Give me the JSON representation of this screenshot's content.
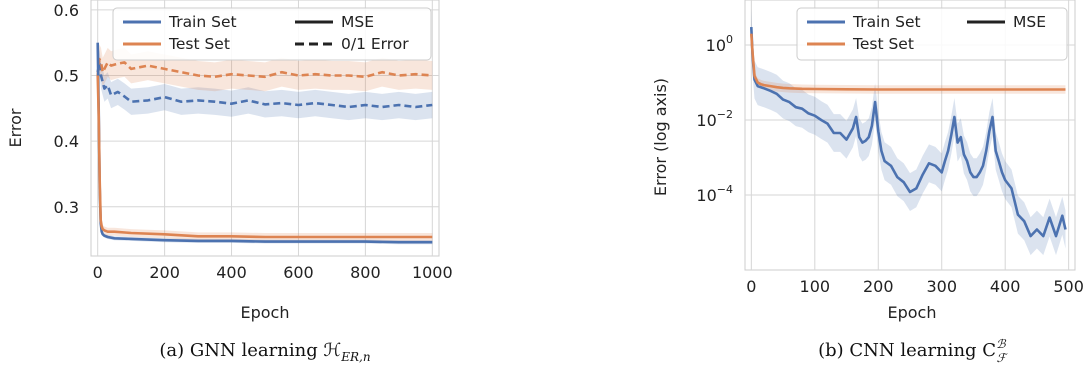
{
  "chart_data": [
    {
      "type": "line",
      "caption": "(a) GNN learning ℋ",
      "caption_sub": "ER,n",
      "xlabel": "Epoch",
      "ylabel": "Error",
      "xlim": [
        -20,
        1020
      ],
      "ylim": [
        0.225,
        0.615
      ],
      "x_ticks": [
        0,
        200,
        400,
        600,
        800,
        1000
      ],
      "y_ticks": [
        0.3,
        0.4,
        0.5,
        0.6
      ],
      "y_tick_labels": [
        "0.3",
        "0.4",
        "0.5",
        "0.6"
      ],
      "y_scale": "linear",
      "grid": true,
      "legend": {
        "placement": "top-right",
        "entries": [
          {
            "label": "Train Set",
            "kind": "color",
            "color": "#4c72b0"
          },
          {
            "label": "MSE",
            "kind": "style",
            "dash": "solid"
          },
          {
            "label": "Test Set",
            "kind": "color",
            "color": "#dd8452"
          },
          {
            "label": "0/1 Error",
            "kind": "style",
            "dash": "dashed"
          }
        ]
      },
      "series": [
        {
          "name": "Train Set",
          "metric": "0/1 Error",
          "color": "#4c72b0",
          "dash": "dashed",
          "x": [
            0,
            5,
            10,
            15,
            20,
            30,
            40,
            60,
            80,
            100,
            150,
            200,
            250,
            300,
            350,
            400,
            450,
            500,
            550,
            600,
            650,
            700,
            750,
            800,
            850,
            900,
            950,
            1000
          ],
          "y": [
            0.505,
            0.52,
            0.5,
            0.49,
            0.48,
            0.485,
            0.47,
            0.475,
            0.468,
            0.46,
            0.462,
            0.467,
            0.46,
            0.462,
            0.46,
            0.457,
            0.462,
            0.456,
            0.458,
            0.455,
            0.458,
            0.455,
            0.452,
            0.455,
            0.452,
            0.455,
            0.452,
            0.455
          ],
          "band": 0.02
        },
        {
          "name": "Test Set",
          "metric": "0/1 Error",
          "color": "#dd8452",
          "dash": "dashed",
          "x": [
            0,
            5,
            10,
            15,
            20,
            30,
            40,
            60,
            80,
            100,
            150,
            200,
            250,
            300,
            350,
            400,
            450,
            500,
            550,
            600,
            650,
            700,
            750,
            800,
            850,
            900,
            950,
            1000
          ],
          "y": [
            0.5,
            0.525,
            0.52,
            0.505,
            0.51,
            0.52,
            0.515,
            0.518,
            0.52,
            0.51,
            0.515,
            0.51,
            0.505,
            0.5,
            0.498,
            0.502,
            0.5,
            0.498,
            0.505,
            0.5,
            0.502,
            0.5,
            0.5,
            0.498,
            0.505,
            0.5,
            0.502,
            0.5
          ],
          "band": 0.022
        },
        {
          "name": "Train Set",
          "metric": "MSE",
          "color": "#4c72b0",
          "dash": "solid",
          "x": [
            0,
            3,
            6,
            9,
            12,
            15,
            20,
            30,
            50,
            100,
            200,
            300,
            400,
            500,
            600,
            700,
            800,
            900,
            1000
          ],
          "y": [
            0.55,
            0.45,
            0.33,
            0.275,
            0.262,
            0.258,
            0.256,
            0.254,
            0.252,
            0.251,
            0.249,
            0.248,
            0.248,
            0.247,
            0.247,
            0.247,
            0.247,
            0.246,
            0.246
          ],
          "band": 0.003
        },
        {
          "name": "Test Set",
          "metric": "MSE",
          "color": "#dd8452",
          "dash": "solid",
          "x": [
            0,
            3,
            6,
            9,
            12,
            15,
            20,
            30,
            50,
            100,
            200,
            300,
            400,
            500,
            600,
            700,
            800,
            900,
            1000
          ],
          "y": [
            0.5,
            0.44,
            0.34,
            0.28,
            0.27,
            0.266,
            0.264,
            0.262,
            0.262,
            0.26,
            0.258,
            0.255,
            0.255,
            0.254,
            0.254,
            0.254,
            0.254,
            0.254,
            0.254
          ],
          "band": 0.006
        }
      ]
    },
    {
      "type": "line",
      "caption": "(b) CNN learning C",
      "caption_sup": "ℬ",
      "caption_sub": "ℱ",
      "xlabel": "Epoch",
      "ylabel": "Error (log axis)",
      "xlim": [
        -10,
        510
      ],
      "ylim_log10": [
        -6.0,
        1.2
      ],
      "x_ticks": [
        0,
        100,
        200,
        300,
        400,
        500
      ],
      "y_ticks_log10": [
        0,
        -2,
        -4
      ],
      "y_tick_labels": [
        "10",
        "10",
        "10"
      ],
      "y_tick_exponents": [
        "0",
        "−2",
        "−4"
      ],
      "y_scale": "log",
      "grid": true,
      "legend": {
        "placement": "top-right",
        "entries": [
          {
            "label": "Train Set",
            "kind": "color",
            "color": "#4c72b0"
          },
          {
            "label": "MSE",
            "kind": "style",
            "dash": "solid"
          },
          {
            "label": "Test Set",
            "kind": "color",
            "color": "#dd8452"
          }
        ]
      },
      "series": [
        {
          "name": "Train Set",
          "metric": "MSE",
          "color": "#4c72b0",
          "dash": "solid",
          "x": [
            0,
            2,
            5,
            10,
            20,
            30,
            40,
            50,
            60,
            70,
            80,
            90,
            100,
            110,
            120,
            130,
            140,
            150,
            160,
            165,
            170,
            175,
            180,
            185,
            190,
            195,
            200,
            205,
            210,
            220,
            230,
            240,
            250,
            260,
            270,
            280,
            290,
            300,
            305,
            310,
            315,
            320,
            325,
            330,
            335,
            340,
            345,
            350,
            355,
            360,
            365,
            370,
            375,
            380,
            385,
            390,
            395,
            400,
            410,
            420,
            430,
            440,
            450,
            460,
            470,
            480,
            490,
            495
          ],
          "y": [
            3.0,
            0.5,
            0.12,
            0.08,
            0.07,
            0.06,
            0.05,
            0.035,
            0.03,
            0.022,
            0.02,
            0.015,
            0.013,
            0.01,
            0.008,
            0.0045,
            0.0045,
            0.003,
            0.006,
            0.012,
            0.0035,
            0.0025,
            0.0028,
            0.0035,
            0.007,
            0.03,
            0.005,
            0.0015,
            0.0008,
            0.0006,
            0.0003,
            0.00022,
            0.00012,
            0.00015,
            0.00035,
            0.0007,
            0.0006,
            0.0004,
            0.0008,
            0.0015,
            0.004,
            0.012,
            0.0025,
            0.0035,
            0.0012,
            0.0008,
            0.0004,
            0.0003,
            0.0003,
            0.0004,
            0.0006,
            0.0015,
            0.005,
            0.012,
            0.0015,
            0.0008,
            0.0004,
            0.00025,
            0.00015,
            3e-05,
            2e-05,
            8e-06,
            1.2e-05,
            8e-06,
            2.5e-05,
            8e-06,
            2.8e-05,
            1.2e-05
          ],
          "band_factor": 3.2
        },
        {
          "name": "Test Set",
          "metric": "MSE",
          "color": "#dd8452",
          "dash": "solid",
          "x": [
            0,
            2,
            5,
            10,
            15,
            20,
            30,
            40,
            50,
            60,
            80,
            100,
            150,
            200,
            250,
            300,
            350,
            400,
            450,
            495
          ],
          "y": [
            2.0,
            0.6,
            0.15,
            0.1,
            0.09,
            0.085,
            0.08,
            0.075,
            0.072,
            0.07,
            0.068,
            0.067,
            0.066,
            0.065,
            0.065,
            0.065,
            0.065,
            0.065,
            0.065,
            0.065
          ],
          "band_factor": 1.3
        }
      ]
    }
  ]
}
